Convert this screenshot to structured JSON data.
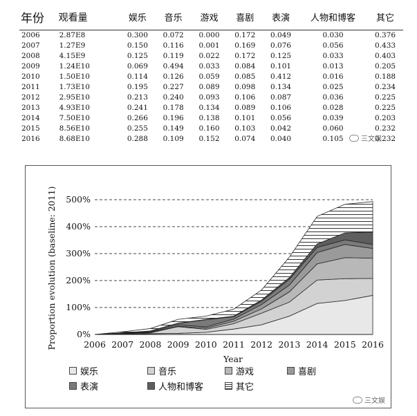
{
  "table": {
    "headers": [
      "年份",
      "观看量",
      "娱乐",
      "音乐",
      "游戏",
      "喜剧",
      "表演",
      "人物和博客",
      "其它"
    ],
    "rows": [
      [
        "2006",
        "2.87E8",
        "0.300",
        "0.072",
        "0.000",
        "0.172",
        "0.049",
        "0.030",
        "0.376"
      ],
      [
        "2007",
        "1.27E9",
        "0.150",
        "0.116",
        "0.001",
        "0.169",
        "0.076",
        "0.056",
        "0.433"
      ],
      [
        "2008",
        "4.15E9",
        "0.125",
        "0.119",
        "0.022",
        "0.172",
        "0.125",
        "0.033",
        "0.403"
      ],
      [
        "2009",
        "1.24E10",
        "0.069",
        "0.494",
        "0.033",
        "0.084",
        "0.101",
        "0.013",
        "0.205"
      ],
      [
        "2010",
        "1.50E10",
        "0.114",
        "0.126",
        "0.059",
        "0.085",
        "0.412",
        "0.016",
        "0.188"
      ],
      [
        "2011",
        "1.73E10",
        "0.195",
        "0.227",
        "0.089",
        "0.098",
        "0.134",
        "0.025",
        "0.234"
      ],
      [
        "2012",
        "2.95E10",
        "0.213",
        "0.240",
        "0.093",
        "0.106",
        "0.087",
        "0.036",
        "0.225"
      ],
      [
        "2013",
        "4.93E10",
        "0.241",
        "0.178",
        "0.134",
        "0.089",
        "0.106",
        "0.028",
        "0.225"
      ],
      [
        "2014",
        "7.50E10",
        "0.266",
        "0.196",
        "0.138",
        "0.101",
        "0.056",
        "0.039",
        "0.203"
      ],
      [
        "2015",
        "8.56E10",
        "0.255",
        "0.149",
        "0.160",
        "0.103",
        "0.042",
        "0.060",
        "0.232"
      ],
      [
        "2016",
        "8.68E10",
        "0.288",
        "0.109",
        "0.152",
        "0.074",
        "0.040",
        "0.105",
        "0.232"
      ]
    ]
  },
  "chart_data": {
    "type": "area",
    "x": [
      2006,
      2007,
      2008,
      2009,
      2010,
      2011,
      2012,
      2013,
      2014,
      2015,
      2016
    ],
    "xlabel": "Year",
    "ylabel": "Proportion evolution (baseline: 2011)",
    "ylim": [
      0,
      500
    ],
    "yticks": [
      "0%",
      "100%",
      "200%",
      "300%",
      "400%",
      "500%"
    ],
    "xticks": [
      "2006",
      "2007",
      "2008",
      "2009",
      "2010",
      "2011",
      "2012",
      "2013",
      "2014",
      "2015",
      "2016"
    ],
    "grid": "horizontal dashed",
    "series": [
      {
        "name": "娱乐",
        "values": [
          0,
          1,
          3,
          4,
          8,
          20,
          36,
          68,
          115,
          126,
          145
        ],
        "color": "#e8e8e8",
        "pattern": "none"
      },
      {
        "name": "音乐",
        "values": [
          0,
          2,
          3,
          25,
          11,
          20,
          43,
          52,
          87,
          81,
          63
        ],
        "color": "#d2d2d2",
        "pattern": "none"
      },
      {
        "name": "游戏",
        "values": [
          0,
          0,
          1,
          2,
          4,
          9,
          16,
          38,
          60,
          78,
          75
        ],
        "color": "#b8b8b8",
        "pattern": "none"
      },
      {
        "name": "喜剧",
        "values": [
          0,
          1,
          2,
          5,
          5,
          8,
          16,
          25,
          42,
          49,
          36
        ],
        "color": "#9a9a9a",
        "pattern": "none"
      },
      {
        "name": "表演",
        "values": [
          0,
          1,
          3,
          5,
          27,
          9,
          12,
          22,
          19,
          17,
          15
        ],
        "color": "#7a7a7a",
        "pattern": "none"
      },
      {
        "name": "人物和博客",
        "values": [
          0,
          1,
          1,
          1,
          1,
          2,
          5,
          6,
          13,
          26,
          46
        ],
        "color": "#5e5e5e",
        "pattern": "none"
      },
      {
        "name": "其它",
        "values": [
          0,
          4,
          9,
          14,
          12,
          26,
          37,
          76,
          102,
          106,
          113
        ],
        "color": "#ffffff",
        "pattern": "horizontal-stripes"
      }
    ],
    "legend_position": "bottom"
  },
  "watermark": {
    "text": "三文娱"
  }
}
